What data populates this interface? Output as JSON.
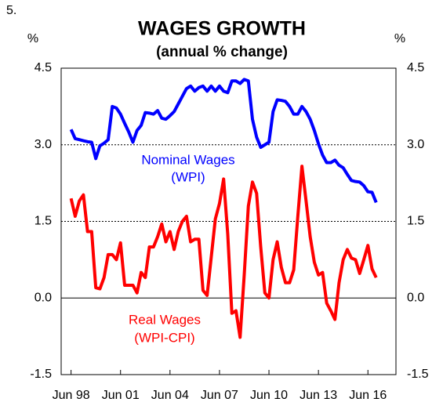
{
  "chart_data": {
    "type": "line",
    "number": "5.",
    "title": "WAGES GROWTH",
    "subtitle": "(annual % change)",
    "y_unit": "%",
    "y2_unit": "%",
    "annotations": [
      "Nominal Wages",
      "(WPI)",
      "Real Wages",
      "(WPI-CPI)"
    ],
    "x": [
      1998.5,
      1998.75,
      1999,
      1999.25,
      1999.5,
      1999.75,
      2000,
      2000.25,
      2000.5,
      2000.75,
      2001,
      2001.25,
      2001.5,
      2001.75,
      2002,
      2002.25,
      2002.5,
      2002.75,
      2003,
      2003.25,
      2003.5,
      2003.75,
      2004,
      2004.25,
      2004.5,
      2004.75,
      2005,
      2005.25,
      2005.5,
      2005.75,
      2006,
      2006.25,
      2006.5,
      2006.75,
      2007,
      2007.25,
      2007.5,
      2007.75,
      2008,
      2008.25,
      2008.5,
      2008.75,
      2009,
      2009.25,
      2009.5,
      2009.75,
      2010,
      2010.25,
      2010.5,
      2010.75,
      2011,
      2011.25,
      2011.5,
      2011.75,
      2012,
      2012.25,
      2012.5,
      2012.75,
      2013,
      2013.25,
      2013.5,
      2013.75,
      2014,
      2014.25,
      2014.5,
      2014.75,
      2015,
      2015.25,
      2015.5,
      2015.75,
      2016,
      2016.25,
      2016.5,
      2016.75,
      2017
    ],
    "series": [
      {
        "name": "Nominal Wages (WPI)",
        "color": "#0000ff",
        "values": [
          3.3,
          3.12,
          3.1,
          3.08,
          3.06,
          3.05,
          2.73,
          2.98,
          3.03,
          3.1,
          3.75,
          3.72,
          3.6,
          3.42,
          3.25,
          3.05,
          3.28,
          3.38,
          3.63,
          3.62,
          3.6,
          3.67,
          3.52,
          3.5,
          3.57,
          3.65,
          3.8,
          3.95,
          4.1,
          4.15,
          4.05,
          4.12,
          4.15,
          4.05,
          4.15,
          4.05,
          4.15,
          4.05,
          4.02,
          4.25,
          4.25,
          4.2,
          4.28,
          4.25,
          3.5,
          3.15,
          2.95,
          3.0,
          3.05,
          3.65,
          3.88,
          3.87,
          3.85,
          3.75,
          3.6,
          3.6,
          3.75,
          3.65,
          3.5,
          3.28,
          3.02,
          2.8,
          2.65,
          2.65,
          2.7,
          2.6,
          2.55,
          2.42,
          2.3,
          2.28,
          2.27,
          2.2,
          2.08,
          2.07,
          1.87
        ]
      },
      {
        "name": "Real Wages (WPI-CPI)",
        "color": "#ff0000",
        "values": [
          1.95,
          1.6,
          1.9,
          2.02,
          1.3,
          1.3,
          0.2,
          0.18,
          0.4,
          0.85,
          0.85,
          0.75,
          1.08,
          0.25,
          0.25,
          0.25,
          0.1,
          0.5,
          0.4,
          1.0,
          1.0,
          1.2,
          1.45,
          1.1,
          1.3,
          0.95,
          1.3,
          1.5,
          1.6,
          1.1,
          1.15,
          1.15,
          0.15,
          0.05,
          0.8,
          1.55,
          1.85,
          2.33,
          1.25,
          -0.3,
          -0.25,
          -0.77,
          0.45,
          1.8,
          2.27,
          2.05,
          1.0,
          0.1,
          0.0,
          0.75,
          1.1,
          0.6,
          0.3,
          0.3,
          0.55,
          1.6,
          2.58,
          1.9,
          1.2,
          0.7,
          0.45,
          0.5,
          -0.1,
          -0.25,
          -0.42,
          0.3,
          0.75,
          0.95,
          0.78,
          0.75,
          0.48,
          0.75,
          1.03,
          0.57,
          0.4
        ]
      }
    ],
    "xlim": [
      1997.9,
      2018.2
    ],
    "xticks": [
      {
        "value": 1998.5,
        "label": "Jun 98"
      },
      {
        "value": 2001.5,
        "label": "Jun 01"
      },
      {
        "value": 2004.5,
        "label": "Jun 04"
      },
      {
        "value": 2007.5,
        "label": "Jun 07"
      },
      {
        "value": 2010.5,
        "label": "Jun 10"
      },
      {
        "value": 2013.5,
        "label": "Jun 13"
      },
      {
        "value": 2016.5,
        "label": "Jun 16"
      }
    ],
    "ylim": [
      -1.5,
      4.5
    ],
    "yticks": [
      {
        "value": -1.5,
        "label": "-1.5"
      },
      {
        "value": 0,
        "label": "0.0"
      },
      {
        "value": 1.5,
        "label": "1.5"
      },
      {
        "value": 3,
        "label": "3.0"
      },
      {
        "value": 4.5,
        "label": "4.5"
      }
    ],
    "y2lim": [
      -1.5,
      4.5
    ],
    "y2ticks": [
      {
        "value": -1.5,
        "label": "-1.5"
      },
      {
        "value": 0,
        "label": "0.0"
      },
      {
        "value": 1.5,
        "label": "1.5"
      },
      {
        "value": 3,
        "label": "3.0"
      },
      {
        "value": 4.5,
        "label": "4.5"
      }
    ],
    "grid": true
  }
}
